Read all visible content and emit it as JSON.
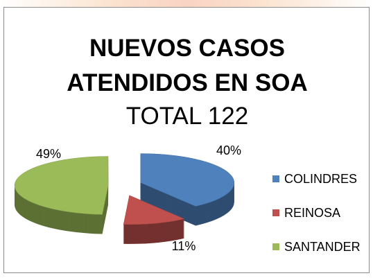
{
  "chart_data": {
    "type": "pie3d",
    "title": "NUEVOS CASOS ATENDIDOS EN SOA",
    "subtitle": "TOTAL 122",
    "categories": [
      "COLINDRES",
      "REINOSA",
      "SANTANDER"
    ],
    "values": [
      40,
      11,
      49
    ],
    "value_labels": [
      "40%",
      "11%",
      "49%"
    ],
    "colors": [
      "#4f81bd",
      "#c0504d",
      "#9bbb59"
    ],
    "legend": "right"
  }
}
